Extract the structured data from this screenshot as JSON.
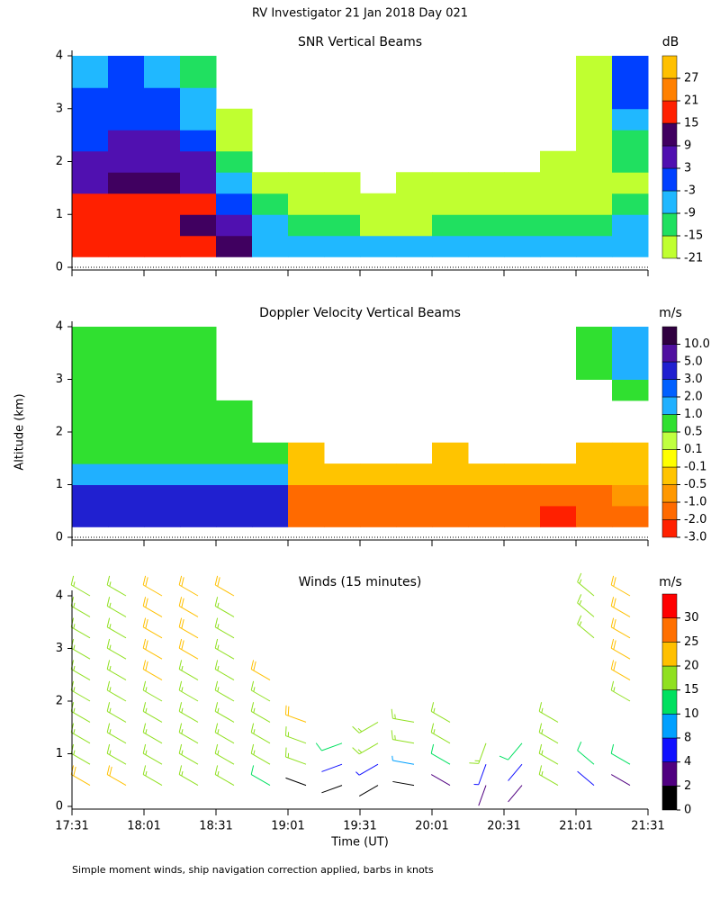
{
  "title": "RV Investigator  21 Jan 2018 Day 021",
  "ylabel": "Altitude (km)",
  "footnote": "Simple moment winds, ship navigation correction applied, barbs in knots",
  "chart_data": [
    {
      "type": "heatmap",
      "title": "SNR Vertical Beams",
      "unit": "dB",
      "ylim": [
        0,
        4
      ],
      "yticks": [
        0,
        1,
        2,
        3,
        4
      ],
      "y_edges": [
        0.2,
        0.6,
        1.0,
        1.4,
        1.8,
        2.2,
        2.6,
        3.0,
        3.4,
        4.0
      ],
      "colorbar_ticks": [
        -21,
        -15,
        -9,
        -3,
        3,
        9,
        15,
        21,
        27
      ],
      "colors": [
        "#c0ff30",
        "#20e060",
        "#20b8ff",
        "#0040ff",
        "#5010b0",
        "#400060",
        "#ff2000",
        "#ff8000",
        "#ffc000"
      ],
      "values": [
        [
          18,
          17,
          20,
          8,
          5,
          2,
          0,
          -2,
          -4
        ],
        [
          17,
          16,
          19,
          10,
          6,
          3,
          0,
          -1,
          -3
        ],
        [
          18,
          15,
          20,
          9,
          6,
          4,
          1,
          -2,
          -5
        ],
        [
          16,
          14,
          18,
          8,
          5,
          2,
          -4,
          -8,
          -10
        ],
        [
          10,
          8,
          2,
          -6,
          -12,
          -18,
          -20,
          null,
          null
        ],
        [
          -6,
          -9,
          -12,
          -18,
          null,
          null,
          null,
          null,
          null
        ],
        [
          -6,
          -14,
          -20,
          -20,
          null,
          null,
          null,
          null,
          null
        ],
        [
          -8,
          -15,
          -20,
          -20,
          null,
          null,
          null,
          null,
          null
        ],
        [
          -8,
          -16,
          -20,
          null,
          null,
          null,
          null,
          null,
          null
        ],
        [
          -8,
          -16,
          -20,
          -20,
          null,
          null,
          null,
          null,
          null
        ],
        [
          -8,
          -15,
          -20,
          -20,
          null,
          null,
          null,
          null,
          null
        ],
        [
          -7,
          -14,
          -20,
          -20,
          null,
          null,
          null,
          null,
          null
        ],
        [
          -6,
          -13,
          -18,
          -20,
          null,
          null,
          null,
          null,
          null
        ],
        [
          -5,
          -12,
          -18,
          -20,
          -20,
          null,
          null,
          null,
          null
        ],
        [
          -6,
          -10,
          -16,
          -18,
          -20,
          -20,
          -20,
          -20,
          -20
        ],
        [
          -5,
          -9,
          -15,
          -17,
          -15,
          -12,
          -8,
          -3,
          -2
        ]
      ]
    },
    {
      "type": "heatmap",
      "title": "Doppler Velocity Vertical Beams",
      "unit": "m/s",
      "ylim": [
        0,
        4
      ],
      "yticks": [
        0,
        1,
        2,
        3,
        4
      ],
      "y_edges": [
        0.2,
        0.6,
        1.0,
        1.4,
        1.8,
        2.2,
        2.6,
        3.0,
        3.4,
        4.0
      ],
      "colorbar_ticks": [
        {
          "value": -3,
          "label": "-3.0"
        },
        {
          "value": -2,
          "label": "-2.0"
        },
        {
          "value": -1,
          "label": "-1.0"
        },
        -0.5,
        -0.1,
        0.1,
        0.5,
        {
          "value": 1,
          "label": "1.0"
        },
        {
          "value": 2,
          "label": "2.0"
        },
        {
          "value": 3,
          "label": "3.0"
        },
        {
          "value": 5,
          "label": "5.0"
        },
        {
          "value": 10,
          "label": "10.0"
        }
      ],
      "colors": [
        "#ff2000",
        "#ff6a00",
        "#ff9800",
        "#ffc400",
        "#ffff00",
        "#c0ff40",
        "#30e030",
        "#20b0ff",
        "#0060ff",
        "#2020d0",
        "#5010a0",
        "#300040"
      ],
      "values": [
        [
          3.5,
          3.5,
          1.5,
          0.7,
          0.7,
          0.7,
          0.7,
          0.7,
          0.7
        ],
        [
          3.5,
          3.5,
          1.5,
          0.7,
          0.7,
          0.7,
          0.7,
          0.7,
          0.7
        ],
        [
          3.5,
          3.5,
          1.5,
          0.7,
          0.7,
          0.7,
          0.7,
          0.7,
          0.7
        ],
        [
          3.5,
          3.5,
          1.5,
          0.7,
          0.7,
          0.7,
          0.7,
          0.7,
          0.7
        ],
        [
          3.5,
          3.5,
          1.5,
          0.7,
          0.7,
          0.7,
          null,
          null,
          null
        ],
        [
          3.2,
          3.2,
          1.2,
          0.6,
          null,
          null,
          null,
          null,
          null
        ],
        [
          -1.5,
          -1.5,
          -0.5,
          -0.3,
          null,
          null,
          null,
          null,
          null
        ],
        [
          -1.5,
          -1.5,
          -0.3,
          null,
          null,
          null,
          null,
          null,
          null
        ],
        [
          -1.5,
          -1.5,
          -0.3,
          null,
          null,
          null,
          null,
          null,
          null
        ],
        [
          -1.5,
          -1.5,
          -0.5,
          null,
          null,
          null,
          null,
          null,
          null
        ],
        [
          -1.5,
          -1.5,
          -0.3,
          -0.3,
          null,
          null,
          null,
          null,
          null
        ],
        [
          -1.5,
          -1.5,
          -0.5,
          null,
          null,
          null,
          null,
          null,
          null
        ],
        [
          -1.5,
          -1.5,
          -0.5,
          null,
          null,
          null,
          null,
          null,
          null
        ],
        [
          -2.5,
          -1.5,
          -0.5,
          null,
          null,
          null,
          null,
          null,
          null
        ],
        [
          -2,
          -1.5,
          -0.5,
          -0.3,
          null,
          null,
          null,
          0.7,
          0.7
        ],
        [
          -1.5,
          -1,
          -0.5,
          -0.2,
          null,
          null,
          0.7,
          1,
          1.5
        ]
      ]
    },
    {
      "type": "barbs",
      "title": "Winds (15 minutes)",
      "unit": "m/s",
      "ylim": [
        0,
        4
      ],
      "yticks": [
        0,
        1,
        2,
        3,
        4
      ],
      "y": [
        0.4,
        0.8,
        1.2,
        1.6,
        2.0,
        2.4,
        2.8,
        3.2,
        3.6,
        4.0
      ],
      "xticks": [
        "17:31",
        "18:01",
        "18:31",
        "19:01",
        "19:31",
        "20:01",
        "20:31",
        "21:01",
        "21:31"
      ],
      "xlabel": "Time (UT)",
      "colorbar_ticks": [
        0,
        2,
        4,
        8,
        10,
        15,
        20,
        25,
        30
      ],
      "colors": [
        "#000000",
        "#500080",
        "#1010ff",
        "#00a0ff",
        "#00e060",
        "#90e020",
        "#ffc000",
        "#ff7000",
        "#ff0000"
      ],
      "direction": [
        300,
        300,
        300,
        300,
        300,
        300,
        290,
        250,
        240,
        280,
        300,
        200,
        220,
        300,
        310,
        300
      ],
      "values": [
        [
          20,
          17,
          17,
          17,
          17,
          17,
          17,
          17,
          17,
          17
        ],
        [
          20,
          17,
          17,
          17,
          17,
          18,
          18,
          18,
          17,
          17
        ],
        [
          18,
          17,
          17,
          17,
          18,
          20,
          20,
          21,
          22,
          22
        ],
        [
          17,
          17,
          17,
          17,
          18,
          18,
          20,
          20,
          21,
          22
        ],
        [
          15,
          15,
          17,
          17,
          17,
          17,
          17,
          17,
          18,
          22
        ],
        [
          14,
          15,
          16,
          17,
          18,
          20,
          null,
          null,
          null,
          null
        ],
        [
          1,
          16,
          17,
          20,
          null,
          null,
          null,
          null,
          null,
          null
        ],
        [
          1,
          4,
          14,
          null,
          null,
          null,
          null,
          null,
          null,
          null
        ],
        [
          1,
          6,
          17,
          17,
          null,
          null,
          null,
          null,
          null,
          null
        ],
        [
          1,
          8,
          17,
          17,
          null,
          null,
          null,
          null,
          null,
          null
        ],
        [
          2,
          13,
          18,
          17,
          null,
          null,
          null,
          null,
          null,
          null
        ],
        [
          2,
          6,
          17,
          null,
          null,
          null,
          null,
          null,
          null,
          null
        ],
        [
          3,
          4,
          12,
          null,
          null,
          null,
          null,
          null,
          null,
          null
        ],
        [
          18,
          17,
          17,
          17,
          null,
          null,
          null,
          null,
          null,
          null
        ],
        [
          4,
          14,
          null,
          null,
          null,
          null,
          null,
          17,
          17,
          17
        ],
        [
          3,
          14,
          null,
          null,
          18,
          20,
          20,
          21,
          22,
          22
        ]
      ]
    }
  ]
}
